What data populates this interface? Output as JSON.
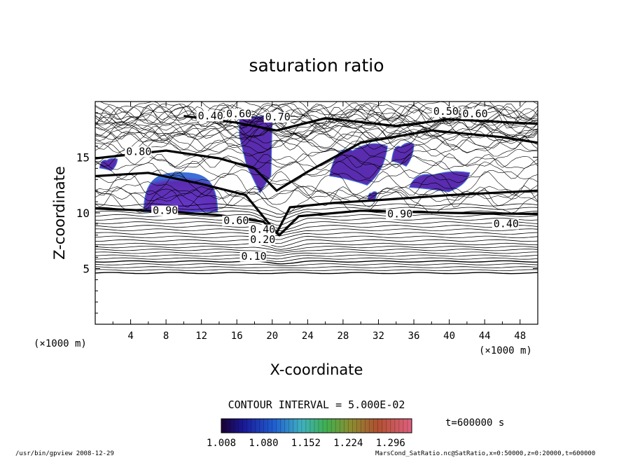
{
  "chart_data": {
    "type": "contour",
    "title": "saturation ratio",
    "xlabel": "X-coordinate",
    "ylabel": "Z-coordinate",
    "x_unit": "(×1000 m)",
    "y_unit": "(×1000 m)",
    "xlim": [
      0,
      50
    ],
    "ylim": [
      0,
      20
    ],
    "x_ticks": [
      4,
      8,
      12,
      16,
      20,
      24,
      28,
      32,
      36,
      40,
      44,
      48
    ],
    "y_ticks": [
      5,
      10,
      15
    ],
    "contour_interval_label": "CONTOUR INTERVAL = 5.000E-02",
    "contour_labels": [
      {
        "text": "0.10",
        "x": 16.5,
        "y": 5.8
      },
      {
        "text": "0.20",
        "x": 17.5,
        "y": 7.3
      },
      {
        "text": "0.40",
        "x": 17.5,
        "y": 8.2
      },
      {
        "text": "0.60",
        "x": 14.5,
        "y": 9.0
      },
      {
        "text": "0.90",
        "x": 6.5,
        "y": 9.9
      },
      {
        "text": "0.40",
        "x": 45.0,
        "y": 8.7
      },
      {
        "text": "0.40",
        "x": 11.6,
        "y": 18.4
      },
      {
        "text": "0.60",
        "x": 14.8,
        "y": 18.6
      },
      {
        "text": "0.70",
        "x": 19.2,
        "y": 18.3
      },
      {
        "text": "0.50",
        "x": 38.2,
        "y": 18.8
      },
      {
        "text": "0.60",
        "x": 41.5,
        "y": 18.6
      },
      {
        "text": "0.80",
        "x": 3.5,
        "y": 15.2
      },
      {
        "text": "0.90",
        "x": 33.0,
        "y": 9.6
      }
    ],
    "colorbar": {
      "ticks": [
        "1.008",
        "1.080",
        "1.152",
        "1.224",
        "1.296"
      ],
      "min": 1.008,
      "max": 1.332,
      "colormap": "rainbow"
    },
    "supersaturated_regions": [
      {
        "x": [
          5.5,
          13.8
        ],
        "y": [
          10.1,
          13.6
        ],
        "shape": "dome"
      },
      {
        "x": [
          16.3,
          20.0
        ],
        "y": [
          11.8,
          18.8
        ],
        "shape": "plume"
      },
      {
        "x": [
          26.5,
          33.0
        ],
        "y": [
          12.5,
          16.6
        ],
        "shape": "patch"
      },
      {
        "x": [
          33.5,
          36.0
        ],
        "y": [
          14.2,
          16.5
        ],
        "shape": "patch"
      },
      {
        "x": [
          35.5,
          42.3
        ],
        "y": [
          11.9,
          13.9
        ],
        "shape": "patch"
      },
      {
        "x": [
          0.5,
          2.5
        ],
        "y": [
          13.8,
          15.0
        ],
        "shape": "patch"
      },
      {
        "x": [
          30.8,
          31.8
        ],
        "y": [
          11.0,
          12.0
        ],
        "shape": "patch"
      }
    ],
    "time_label": "t=600000 s"
  },
  "footer": {
    "left": "/usr/bin/gpview   2008-12-29",
    "right": "MarsCond_SatRatio.nc@SatRatio,x=0:50000,z=0:20000,t=600000"
  },
  "colors": {
    "line": "#000000",
    "fill_main": "#5a2cb0",
    "fill_edge": "#3c6fd8"
  }
}
